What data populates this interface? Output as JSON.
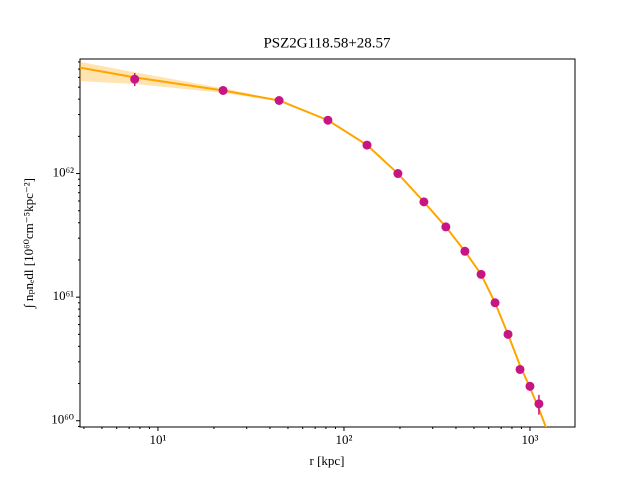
{
  "chart_data": {
    "type": "scatter",
    "title": "PSZ2G118.58+28.57",
    "x_label": "r [kpc]",
    "y_label": "∫ nₚnₑdl [10⁶⁰cm⁻⁵kpc⁻²]",
    "x_scale": "log",
    "y_scale": "log",
    "xlim": [
      3.81,
      1746
    ],
    "ylim": [
      8.9e+59,
      8.45e+62
    ],
    "xticks": [
      {
        "value": 10,
        "label": "10¹"
      },
      {
        "value": 100,
        "label": "10²"
      },
      {
        "value": 1000,
        "label": "10³"
      }
    ],
    "yticks": [
      {
        "value": 1e+60,
        "label": "10⁶⁰"
      },
      {
        "value": 1e+61,
        "label": "10⁶¹"
      },
      {
        "value": 1e+62,
        "label": "10⁶²"
      }
    ],
    "series": [
      {
        "color": "#c71585",
        "x": [
          7.5,
          22.4,
          44.8,
          82,
          133,
          195,
          269,
          353,
          447,
          546,
          649,
          762,
          884,
          1000,
          1117
        ],
        "values": [
          5.8e+62,
          4.7e+62,
          3.9e+62,
          2.7e+62,
          1.7e+62,
          1e+62,
          5.9e+61,
          3.7e+61,
          2.35e+61,
          1.53e+61,
          9e+60,
          5e+60,
          2.6e+60,
          1.9e+60,
          1.37e+60
        ],
        "errors": [
          7e+61,
          1e+61,
          5e+60,
          3e+60,
          2e+60,
          1e+60,
          6e+59,
          4e+59,
          3e+59,
          2e+59,
          1.5e+59,
          1e+59,
          1e+59,
          1.5e+59,
          2.5e+59
        ]
      }
    ],
    "fit": {
      "color": "#ffa500",
      "x": [
        3.81,
        7.5,
        22.4,
        44.8,
        82,
        133,
        195,
        269,
        353,
        447,
        546,
        649,
        762,
        884,
        1000,
        1117,
        1250
      ],
      "values": [
        7.2e+62,
        6e+62,
        4.7e+62,
        3.9e+62,
        2.7e+62,
        1.7e+62,
        1e+62,
        5.9e+61,
        3.7e+61,
        2.35e+61,
        1.53e+61,
        9e+60,
        5e+60,
        2.8e+60,
        1.85e+60,
        1.25e+60,
        8e+59
      ],
      "band_upper": [
        8e+62,
        6.6e+62,
        4.9e+62,
        3.95e+62,
        2.74e+62,
        1.72e+62,
        1.02e+62,
        6e+61,
        3.77e+61,
        2.4e+61,
        1.56e+61,
        9.2e+60,
        5.1e+60,
        2.86e+60,
        1.9e+60,
        1.29e+60,
        8.3e+59
      ],
      "band_lower": [
        5.6e+62,
        5.3e+62,
        4.5e+62,
        3.85e+62,
        2.66e+62,
        1.68e+62,
        9.8e+61,
        5.8e+61,
        3.63e+61,
        2.3e+61,
        1.5e+61,
        8.8e+60,
        4.9e+60,
        2.74e+60,
        1.8e+60,
        1.21e+60,
        7.7e+59
      ]
    }
  }
}
